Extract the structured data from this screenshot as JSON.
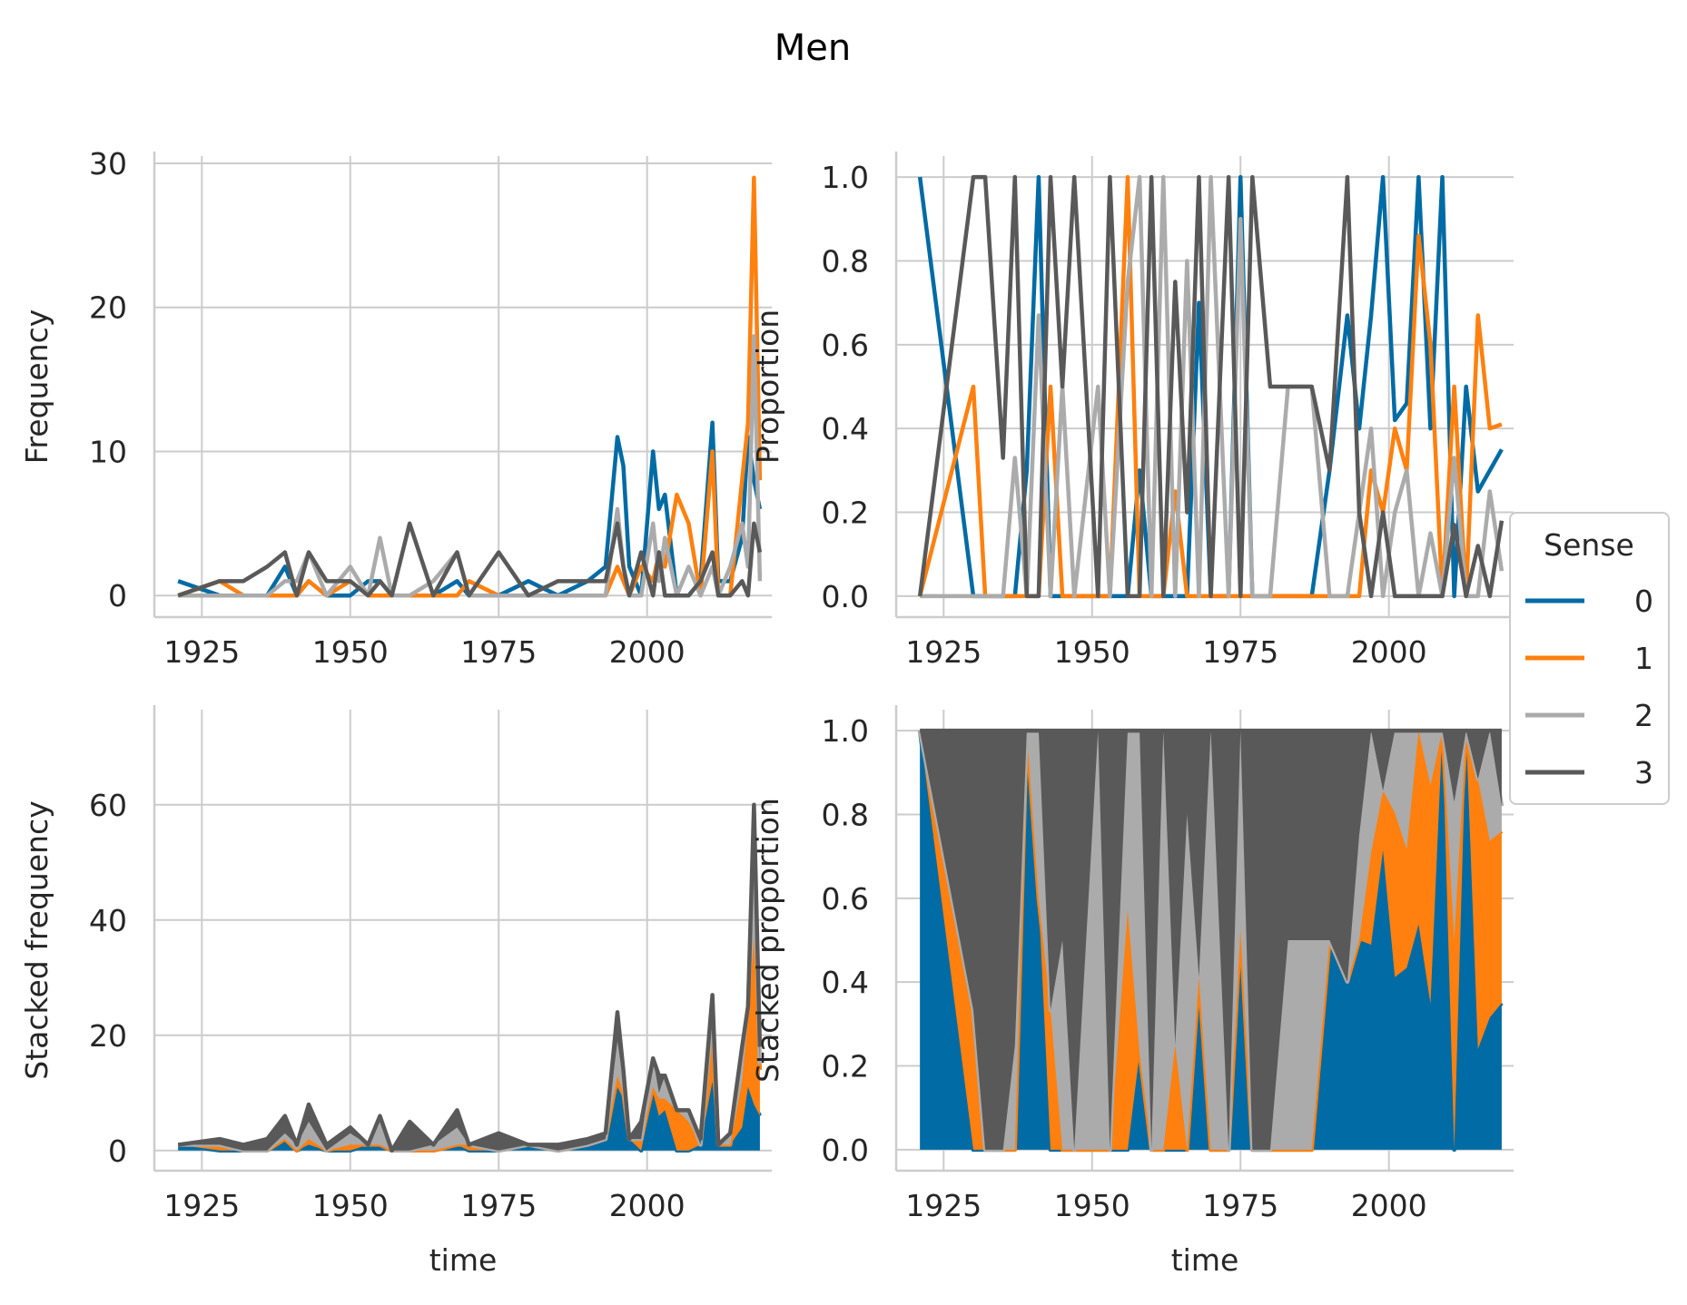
{
  "figure": {
    "title": "Men"
  },
  "colors": {
    "sense_0": "#006ba4",
    "sense_1": "#ff800e",
    "sense_2": "#ababab",
    "sense_3": "#595959",
    "grid": "#cccccc",
    "spine": "#cccccc",
    "text": "#262626"
  },
  "legend": {
    "title": "Sense",
    "entries": [
      {
        "label": "0",
        "color": "#006ba4"
      },
      {
        "label": "1",
        "color": "#ff800e"
      },
      {
        "label": "2",
        "color": "#ababab"
      },
      {
        "label": "3",
        "color": "#595959"
      }
    ],
    "placement": "right-center"
  },
  "chart_data": [
    {
      "id": "frequency",
      "type": "line",
      "xlabel": "",
      "ylabel": "Frequency",
      "xlim": [
        1917,
        2021
      ],
      "ylim": [
        -1.5,
        30.5
      ],
      "xticks": [
        "1925",
        "1950",
        "1975",
        "2000"
      ],
      "yticks": [
        "0",
        "10",
        "20",
        "30"
      ],
      "grid": true,
      "x": [
        1921,
        1928,
        1932,
        1936,
        1939,
        1941,
        1943,
        1946,
        1950,
        1953,
        1955,
        1957,
        1960,
        1964,
        1968,
        1970,
        1975,
        1980,
        1985,
        1990,
        1993,
        1995,
        1996,
        1997,
        1999,
        2001,
        2002,
        2003,
        2005,
        2007,
        2009,
        2011,
        2012,
        2014,
        2016,
        2017,
        2018,
        2019
      ],
      "series": [
        {
          "name": "0",
          "values": [
            1,
            0,
            0,
            0,
            2,
            0,
            1,
            0,
            0,
            1,
            1,
            0,
            0,
            0,
            1,
            0,
            0,
            1,
            0,
            1,
            2,
            11,
            9,
            2,
            0,
            10,
            6,
            7,
            0,
            0,
            1,
            12,
            1,
            1,
            4,
            11,
            8,
            6
          ]
        },
        {
          "name": "1",
          "values": [
            0,
            1,
            0,
            0,
            0,
            0,
            1,
            0,
            1,
            0,
            0,
            0,
            0,
            0,
            0,
            1,
            0,
            0,
            0,
            0,
            0,
            2,
            1,
            0,
            2,
            1,
            3,
            2,
            7,
            5,
            0,
            10,
            0,
            0,
            8,
            12,
            29,
            8
          ]
        },
        {
          "name": "2",
          "values": [
            0,
            0,
            0,
            0,
            1,
            1,
            3,
            0,
            2,
            0,
            4,
            0,
            0,
            1,
            3,
            0,
            0,
            0,
            0,
            0,
            0,
            6,
            2,
            0,
            0,
            5,
            1,
            4,
            0,
            2,
            0,
            2,
            0,
            2,
            5,
            2,
            18,
            1
          ]
        },
        {
          "name": "3",
          "values": [
            0,
            1,
            1,
            2,
            3,
            0,
            3,
            1,
            1,
            0,
            1,
            0,
            5,
            0,
            3,
            0,
            3,
            0,
            1,
            1,
            1,
            5,
            2,
            0,
            3,
            0,
            3,
            0,
            0,
            0,
            1,
            3,
            0,
            0,
            1,
            0,
            5,
            3
          ]
        }
      ]
    },
    {
      "id": "proportion",
      "type": "line",
      "xlabel": "",
      "ylabel": "Proportion",
      "xlim": [
        1917,
        2021
      ],
      "ylim": [
        -0.05,
        1.05
      ],
      "xticks": [
        "1925",
        "1950",
        "1975",
        "2000"
      ],
      "yticks": [
        "0.0",
        "0.2",
        "0.4",
        "0.6",
        "0.8",
        "1.0"
      ],
      "grid": true,
      "x": [
        1921,
        1930,
        1932,
        1935,
        1937,
        1939,
        1941,
        1943,
        1945,
        1947,
        1951,
        1953,
        1956,
        1958,
        1960,
        1962,
        1964,
        1966,
        1968,
        1970,
        1973,
        1975,
        1977,
        1980,
        1983,
        1987,
        1990,
        1993,
        1995,
        1997,
        1999,
        2001,
        2003,
        2005,
        2007,
        2009,
        2011,
        2013,
        2015,
        2017,
        2019
      ],
      "series": [
        {
          "name": "0",
          "values": [
            1.0,
            0.0,
            0.0,
            0.0,
            0.0,
            0.3,
            1.0,
            0.0,
            0.0,
            0.0,
            0.0,
            0.0,
            0.0,
            0.3,
            0.0,
            0.0,
            0.0,
            0.0,
            0.7,
            0.0,
            0.0,
            1.0,
            0.0,
            0.0,
            0.0,
            0.0,
            0.3,
            0.67,
            0.4,
            0.67,
            1.0,
            0.42,
            0.46,
            1.0,
            0.4,
            1.0,
            0.0,
            0.5,
            0.25,
            0.3,
            0.35
          ]
        },
        {
          "name": "1",
          "values": [
            0.0,
            0.5,
            0.0,
            0.0,
            0.0,
            0.0,
            0.0,
            0.5,
            0.0,
            0.0,
            0.0,
            0.0,
            1.0,
            0.0,
            0.0,
            0.0,
            0.25,
            0.0,
            0.0,
            0.0,
            0.0,
            0.0,
            0.0,
            0.0,
            0.0,
            0.0,
            0.0,
            0.0,
            0.0,
            0.3,
            0.2,
            0.4,
            0.3,
            0.86,
            0.6,
            0.0,
            0.5,
            0.0,
            0.67,
            0.4,
            0.41
          ]
        },
        {
          "name": "2",
          "values": [
            0.0,
            0.0,
            0.0,
            0.0,
            0.33,
            0.0,
            0.67,
            0.0,
            0.5,
            0.0,
            0.5,
            0.0,
            0.75,
            1.0,
            0.0,
            1.0,
            0.0,
            0.8,
            0.0,
            1.0,
            0.0,
            0.9,
            0.0,
            0.0,
            0.5,
            0.5,
            0.0,
            0.0,
            0.2,
            0.4,
            0.0,
            0.2,
            0.3,
            0.0,
            0.15,
            0.0,
            0.33,
            0.0,
            0.0,
            0.25,
            0.06
          ]
        },
        {
          "name": "3",
          "values": [
            0.0,
            1.0,
            1.0,
            0.33,
            1.0,
            0.0,
            0.0,
            1.0,
            0.5,
            1.0,
            0.0,
            1.0,
            0.0,
            0.0,
            1.0,
            0.0,
            0.75,
            0.2,
            1.0,
            0.0,
            1.0,
            0.0,
            1.0,
            0.5,
            0.5,
            0.5,
            0.3,
            1.0,
            0.2,
            0.0,
            0.2,
            0.0,
            0.0,
            0.0,
            0.0,
            0.0,
            0.17,
            0.0,
            0.12,
            0.0,
            0.18
          ]
        }
      ]
    },
    {
      "id": "stacked-frequency",
      "type": "area",
      "xlabel": "time",
      "ylabel": "Stacked frequency",
      "xlim": [
        1917,
        2021
      ],
      "ylim": [
        -3.5,
        76.5
      ],
      "xticks": [
        "1925",
        "1950",
        "1975",
        "2000"
      ],
      "yticks": [
        "0",
        "20",
        "40",
        "60"
      ],
      "grid": true,
      "x": [
        1921,
        1928,
        1932,
        1936,
        1939,
        1941,
        1943,
        1946,
        1950,
        1953,
        1955,
        1957,
        1960,
        1964,
        1968,
        1970,
        1975,
        1980,
        1985,
        1990,
        1993,
        1995,
        1996,
        1997,
        1999,
        2001,
        2002,
        2003,
        2005,
        2007,
        2009,
        2011,
        2012,
        2014,
        2016,
        2017,
        2018,
        2019
      ],
      "series": [
        {
          "name": "0",
          "values": [
            1,
            0,
            0,
            0,
            2,
            0,
            1,
            0,
            0,
            1,
            1,
            0,
            0,
            0,
            1,
            0,
            0,
            1,
            0,
            1,
            2,
            11,
            9,
            2,
            0,
            10,
            6,
            7,
            0,
            0,
            1,
            12,
            1,
            1,
            4,
            11,
            8,
            6
          ]
        },
        {
          "name": "1",
          "values": [
            0,
            1,
            0,
            0,
            0,
            0,
            1,
            0,
            1,
            0,
            0,
            0,
            0,
            0,
            0,
            1,
            0,
            0,
            0,
            0,
            0,
            2,
            1,
            0,
            2,
            1,
            3,
            2,
            7,
            5,
            0,
            10,
            0,
            0,
            8,
            12,
            29,
            8
          ]
        },
        {
          "name": "2",
          "values": [
            0,
            0,
            0,
            0,
            1,
            1,
            3,
            0,
            2,
            0,
            4,
            0,
            0,
            1,
            3,
            0,
            0,
            0,
            0,
            0,
            0,
            6,
            2,
            0,
            0,
            5,
            1,
            4,
            0,
            2,
            0,
            2,
            0,
            2,
            5,
            2,
            18,
            1
          ]
        },
        {
          "name": "3",
          "values": [
            0,
            1,
            1,
            2,
            3,
            0,
            3,
            1,
            1,
            0,
            1,
            0,
            5,
            0,
            3,
            0,
            3,
            0,
            1,
            1,
            1,
            5,
            2,
            0,
            3,
            0,
            3,
            0,
            0,
            0,
            1,
            3,
            0,
            0,
            1,
            0,
            5,
            3
          ]
        }
      ]
    },
    {
      "id": "stacked-proportion",
      "type": "area",
      "xlabel": "time",
      "ylabel": "Stacked proportion",
      "xlim": [
        1917,
        2021
      ],
      "ylim": [
        -0.05,
        1.05
      ],
      "xticks": [
        "1925",
        "1950",
        "1975",
        "2000"
      ],
      "yticks": [
        "0.0",
        "0.2",
        "0.4",
        "0.6",
        "0.8",
        "1.0"
      ],
      "grid": true,
      "x": [
        1921,
        1930,
        1932,
        1935,
        1937,
        1939,
        1941,
        1943,
        1945,
        1947,
        1951,
        1953,
        1956,
        1958,
        1960,
        1962,
        1964,
        1966,
        1968,
        1970,
        1973,
        1975,
        1977,
        1980,
        1983,
        1987,
        1990,
        1993,
        1995,
        1997,
        1999,
        2001,
        2003,
        2005,
        2007,
        2009,
        2011,
        2013,
        2015,
        2017,
        2019
      ],
      "series": [
        {
          "name": "0",
          "values": [
            1.0,
            0.0,
            0.0,
            0.0,
            0.0,
            0.3,
            1.0,
            0.0,
            0.0,
            0.0,
            0.0,
            0.0,
            0.0,
            0.3,
            0.0,
            0.0,
            0.0,
            0.0,
            0.7,
            0.0,
            0.0,
            1.0,
            0.0,
            0.0,
            0.0,
            0.0,
            0.3,
            0.67,
            0.4,
            0.67,
            1.0,
            0.42,
            0.46,
            1.0,
            0.4,
            1.0,
            0.0,
            0.5,
            0.25,
            0.3,
            0.35
          ]
        },
        {
          "name": "1",
          "values": [
            0.0,
            0.5,
            0.0,
            0.0,
            0.0,
            0.0,
            0.0,
            0.5,
            0.0,
            0.0,
            0.0,
            0.0,
            1.0,
            0.0,
            0.0,
            0.0,
            0.25,
            0.0,
            0.0,
            0.0,
            0.0,
            0.0,
            0.0,
            0.0,
            0.0,
            0.0,
            0.0,
            0.0,
            0.0,
            0.3,
            0.2,
            0.4,
            0.3,
            0.86,
            0.6,
            0.0,
            0.5,
            0.0,
            0.67,
            0.4,
            0.41
          ]
        },
        {
          "name": "2",
          "values": [
            0.0,
            0.0,
            0.0,
            0.0,
            0.33,
            0.0,
            0.67,
            0.0,
            0.5,
            0.0,
            0.5,
            0.0,
            0.75,
            1.0,
            0.0,
            1.0,
            0.0,
            0.8,
            0.0,
            1.0,
            0.0,
            0.9,
            0.0,
            0.0,
            0.5,
            0.5,
            0.0,
            0.0,
            0.2,
            0.4,
            0.0,
            0.2,
            0.3,
            0.0,
            0.15,
            0.0,
            0.33,
            0.0,
            0.0,
            0.25,
            0.06
          ]
        },
        {
          "name": "3",
          "values": [
            0.0,
            1.0,
            1.0,
            0.33,
            1.0,
            0.0,
            0.0,
            1.0,
            0.5,
            1.0,
            0.0,
            1.0,
            0.0,
            0.0,
            1.0,
            0.0,
            0.75,
            0.2,
            1.0,
            0.0,
            1.0,
            0.0,
            1.0,
            0.5,
            0.5,
            0.5,
            0.3,
            1.0,
            0.2,
            0.0,
            0.2,
            0.0,
            0.0,
            0.0,
            0.0,
            0.0,
            0.17,
            0.0,
            0.12,
            0.0,
            0.18
          ]
        }
      ]
    }
  ]
}
